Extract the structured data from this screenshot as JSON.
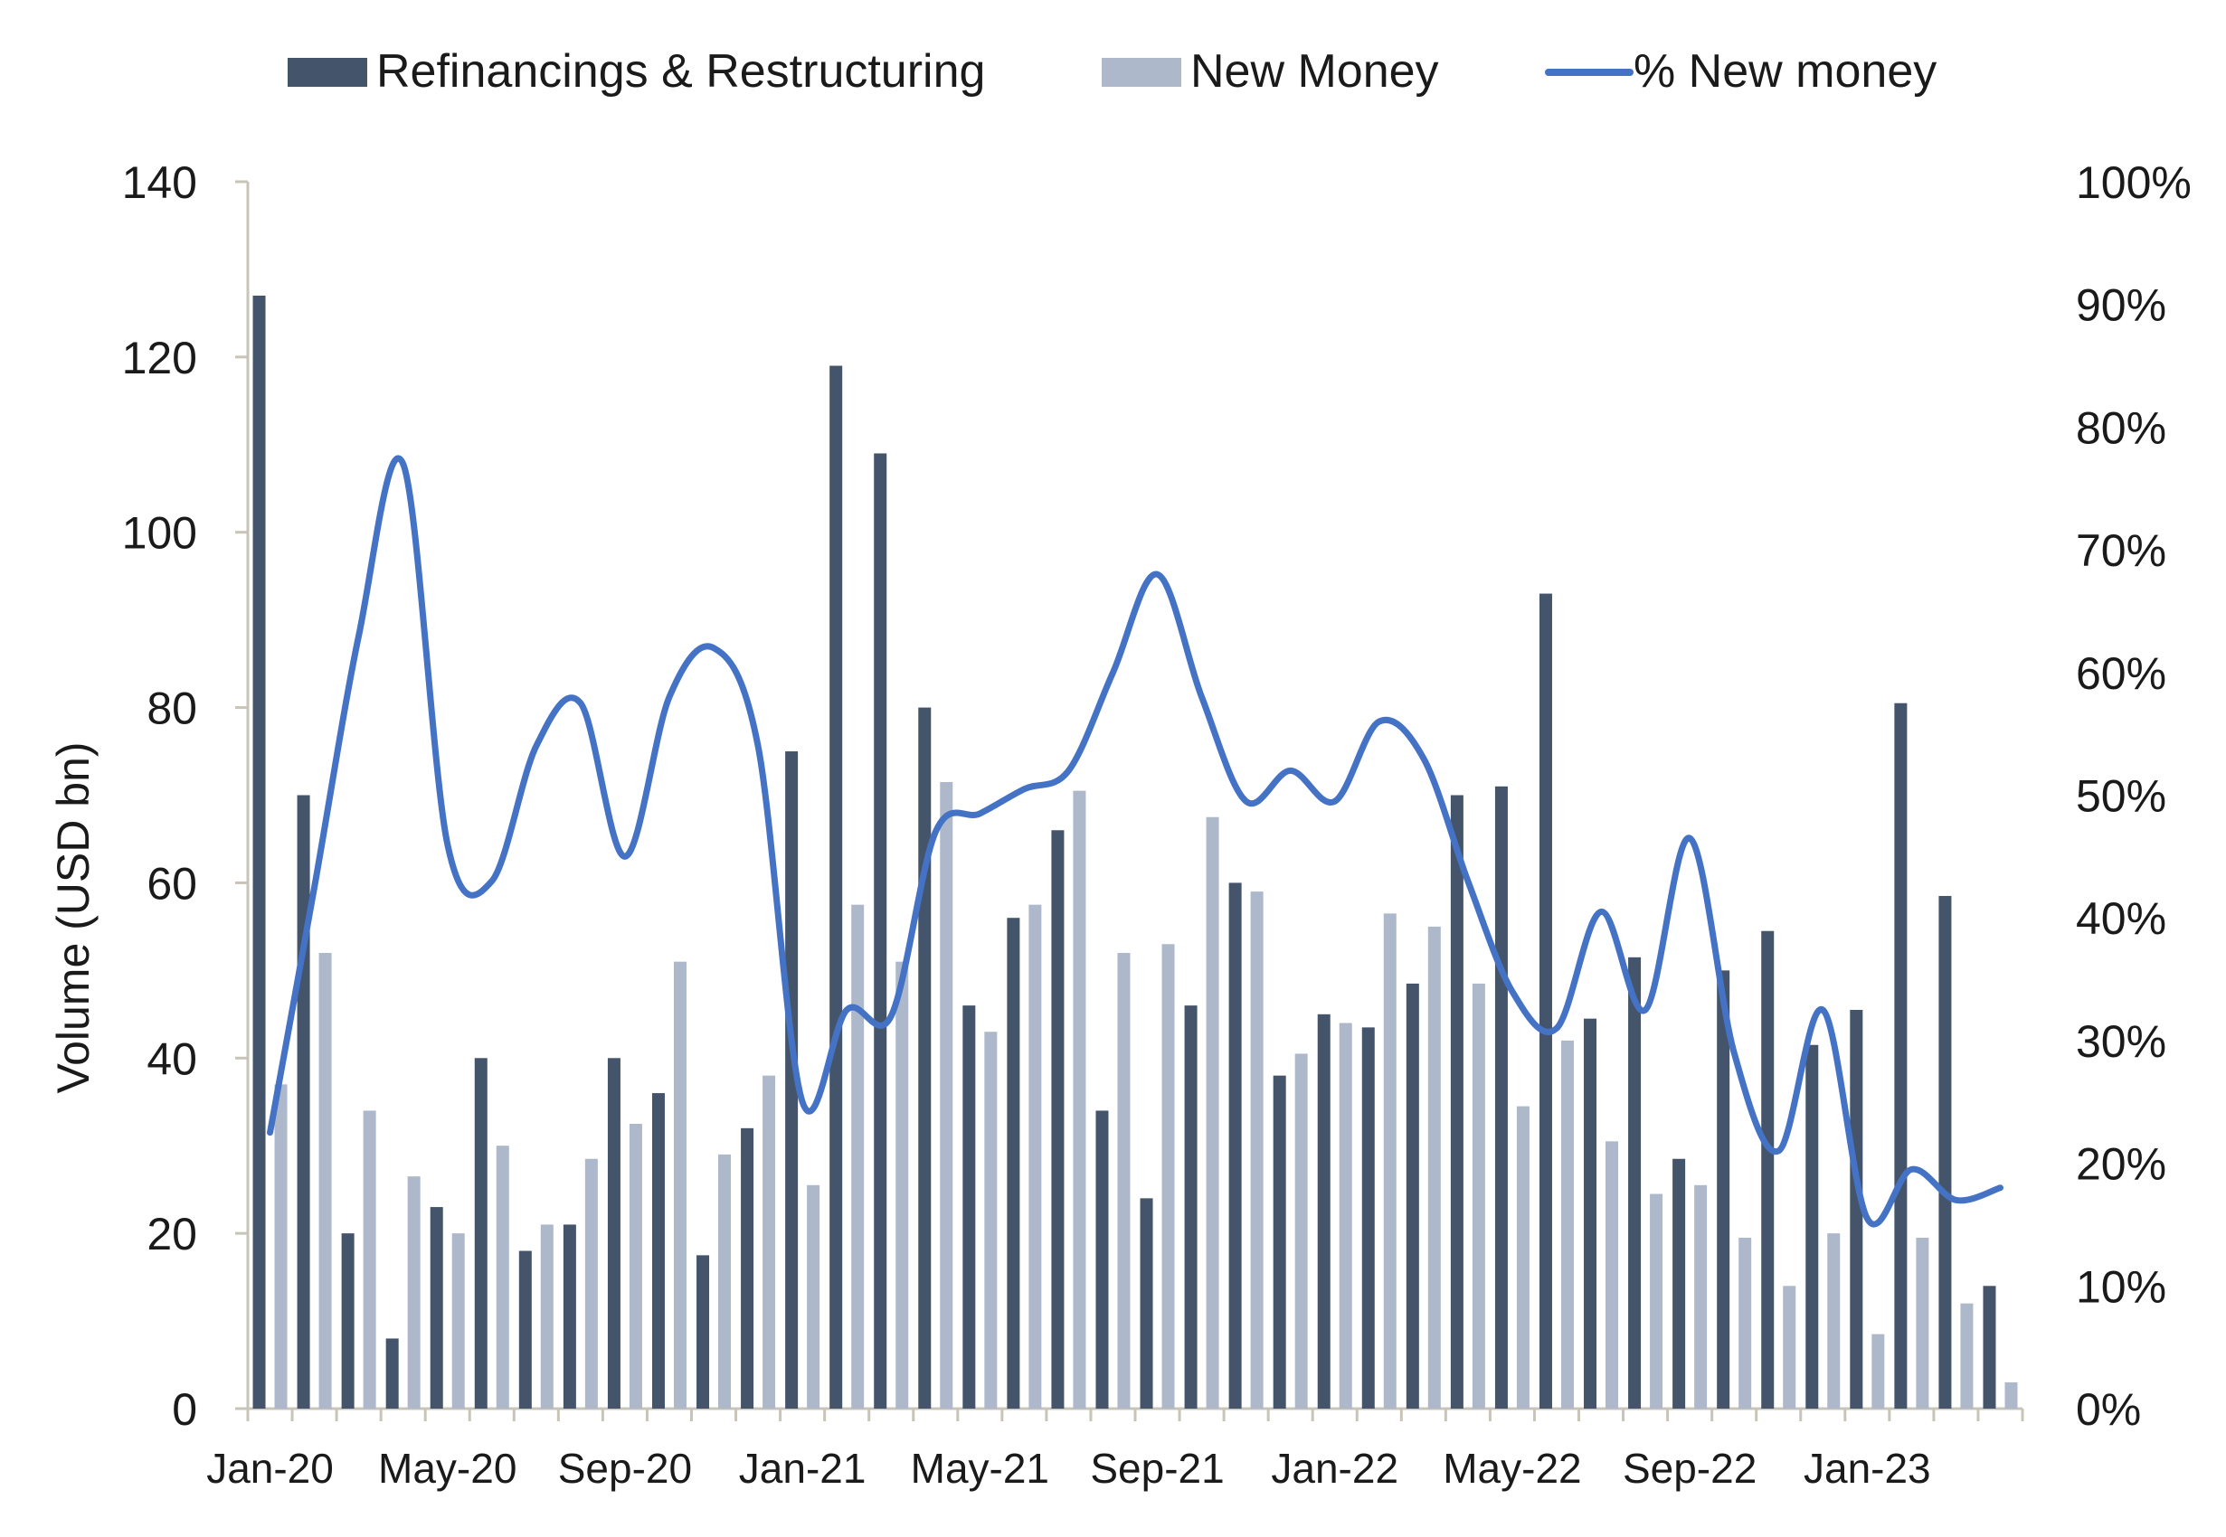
{
  "chart_data": {
    "type": "bar",
    "title": "",
    "ylabel": "Volume (USD bn)",
    "ylim": [
      0,
      140
    ],
    "yticks": [
      "0",
      "20",
      "40",
      "60",
      "80",
      "100",
      "120",
      "140"
    ],
    "y2lim": [
      0,
      100
    ],
    "y2ticks": [
      "0%",
      "10%",
      "20%",
      "30%",
      "40%",
      "50%",
      "60%",
      "70%",
      "80%",
      "90%",
      "100%"
    ],
    "legend_position": "top",
    "x_tick_labels": [
      "Jan-20",
      "May-20",
      "Sep-20",
      "Jan-21",
      "May-21",
      "Sep-21",
      "Jan-22",
      "May-22",
      "Sep-22",
      "Jan-23"
    ],
    "categories": [
      "Jan-20",
      "Feb-20",
      "Mar-20",
      "Apr-20",
      "May-20",
      "Jun-20",
      "Jul-20",
      "Aug-20",
      "Sep-20",
      "Oct-20",
      "Nov-20",
      "Dec-20",
      "Jan-21",
      "Feb-21",
      "Mar-21",
      "Apr-21",
      "May-21",
      "Jun-21",
      "Jul-21",
      "Aug-21",
      "Sep-21",
      "Oct-21",
      "Nov-21",
      "Dec-21",
      "Jan-22",
      "Feb-22",
      "Mar-22",
      "Apr-22",
      "May-22",
      "Jun-22",
      "Jul-22",
      "Aug-22",
      "Sep-22",
      "Oct-22",
      "Nov-22",
      "Dec-22",
      "Jan-23",
      "Feb-23",
      "Mar-23",
      "Apr-23"
    ],
    "series": [
      {
        "name": "Refinancings & Restructuring",
        "kind": "bar",
        "axis": "left",
        "color": "#44546a",
        "values": [
          127,
          70,
          20,
          8,
          23,
          40,
          18,
          21,
          40,
          36,
          17.5,
          32,
          75,
          119,
          109,
          80,
          46,
          56,
          66,
          34,
          24,
          46,
          60,
          38,
          45,
          43.5,
          48.5,
          70,
          71,
          93,
          44.5,
          51.5,
          28.5,
          50,
          54.5,
          41.5,
          45.5,
          80.5,
          58.5,
          14
        ]
      },
      {
        "name": "New Money",
        "kind": "bar",
        "axis": "left",
        "color": "#adb9ca",
        "values": [
          37,
          52,
          34,
          26.5,
          20,
          30,
          21,
          28.5,
          32.5,
          51,
          29,
          38,
          25.5,
          57.5,
          51,
          71.5,
          43,
          57.5,
          70.5,
          52,
          53,
          67.5,
          59,
          40.5,
          44,
          56.5,
          55,
          48.5,
          34.5,
          42,
          30.5,
          24.5,
          25.5,
          19.5,
          14,
          20,
          8.5,
          19.5,
          12,
          3
        ]
      },
      {
        "name": "% New money",
        "kind": "line",
        "axis": "right",
        "color": "#4472c4",
        "values": [
          22.5,
          42.5,
          63,
          77,
          46,
          43,
          54,
          57.5,
          45,
          58,
          62,
          54,
          25,
          32.5,
          32,
          47,
          48.5,
          50.5,
          52,
          60,
          68,
          58,
          49.5,
          52,
          49.5,
          56,
          53,
          43,
          34,
          31,
          40.5,
          32.5,
          46.5,
          29,
          21,
          32.5,
          15.5,
          19.5,
          17,
          18
        ]
      }
    ]
  }
}
